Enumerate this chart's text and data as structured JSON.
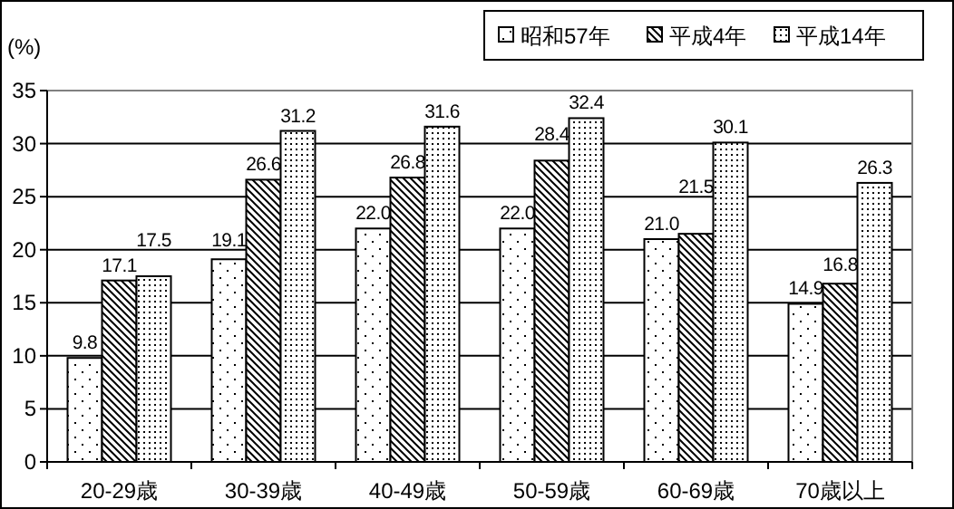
{
  "chart_data": {
    "type": "bar",
    "ylabel": "(%)",
    "categories": [
      "20-29歳",
      "30-39歳",
      "40-49歳",
      "50-59歳",
      "60-69歳",
      "70歳以上"
    ],
    "series": [
      {
        "name": "昭和57年",
        "color": "#000000",
        "values": [
          9.8,
          19.1,
          22.0,
          22.0,
          21.0,
          14.9
        ],
        "value_labels": [
          "9.8",
          "19.1",
          "22.0",
          "22.0",
          "21.0",
          "14.9"
        ]
      },
      {
        "name": "平成4年",
        "color": "#000000",
        "values": [
          17.1,
          26.6,
          26.8,
          28.4,
          21.5,
          16.8
        ],
        "value_labels": [
          "17.1",
          "26.6",
          "26.8",
          "28.4",
          "21.5",
          "16.8"
        ]
      },
      {
        "name": "平成14年",
        "color": "#000000",
        "values": [
          17.5,
          31.2,
          31.6,
          32.4,
          30.1,
          26.3
        ],
        "value_labels": [
          "17.5",
          "31.2",
          "31.6",
          "32.4",
          "30.1",
          "26.3"
        ]
      }
    ],
    "ylim": [
      0,
      35
    ],
    "yticks": [
      0,
      5,
      10,
      15,
      20,
      25,
      30,
      35
    ],
    "grid": "y",
    "legend": "top right"
  }
}
